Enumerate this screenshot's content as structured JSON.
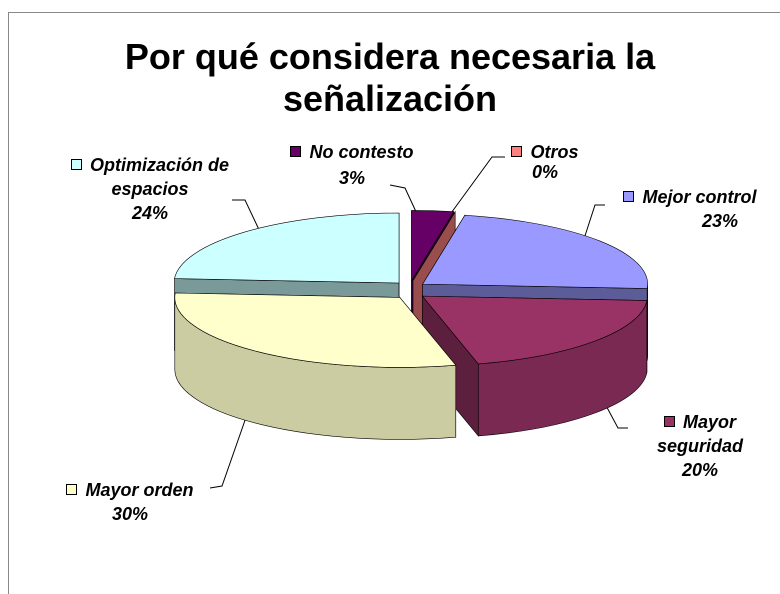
{
  "chart_data": {
    "type": "pie3d",
    "title": "Por qué considera necesaria la señalización",
    "categories": [
      "No contesto",
      "Otros",
      "Mejor control",
      "Mayor seguridad",
      "Mayor orden",
      "Optimización de espacios"
    ],
    "values": [
      3,
      0,
      23,
      20,
      30,
      24
    ],
    "value_labels": [
      "3%",
      "0%",
      "23%",
      "20%",
      "30%",
      "24%"
    ],
    "colors": [
      "#660066",
      "#ff8080",
      "#9999ff",
      "#993366",
      "#ffffcc",
      "#ccffff"
    ]
  }
}
